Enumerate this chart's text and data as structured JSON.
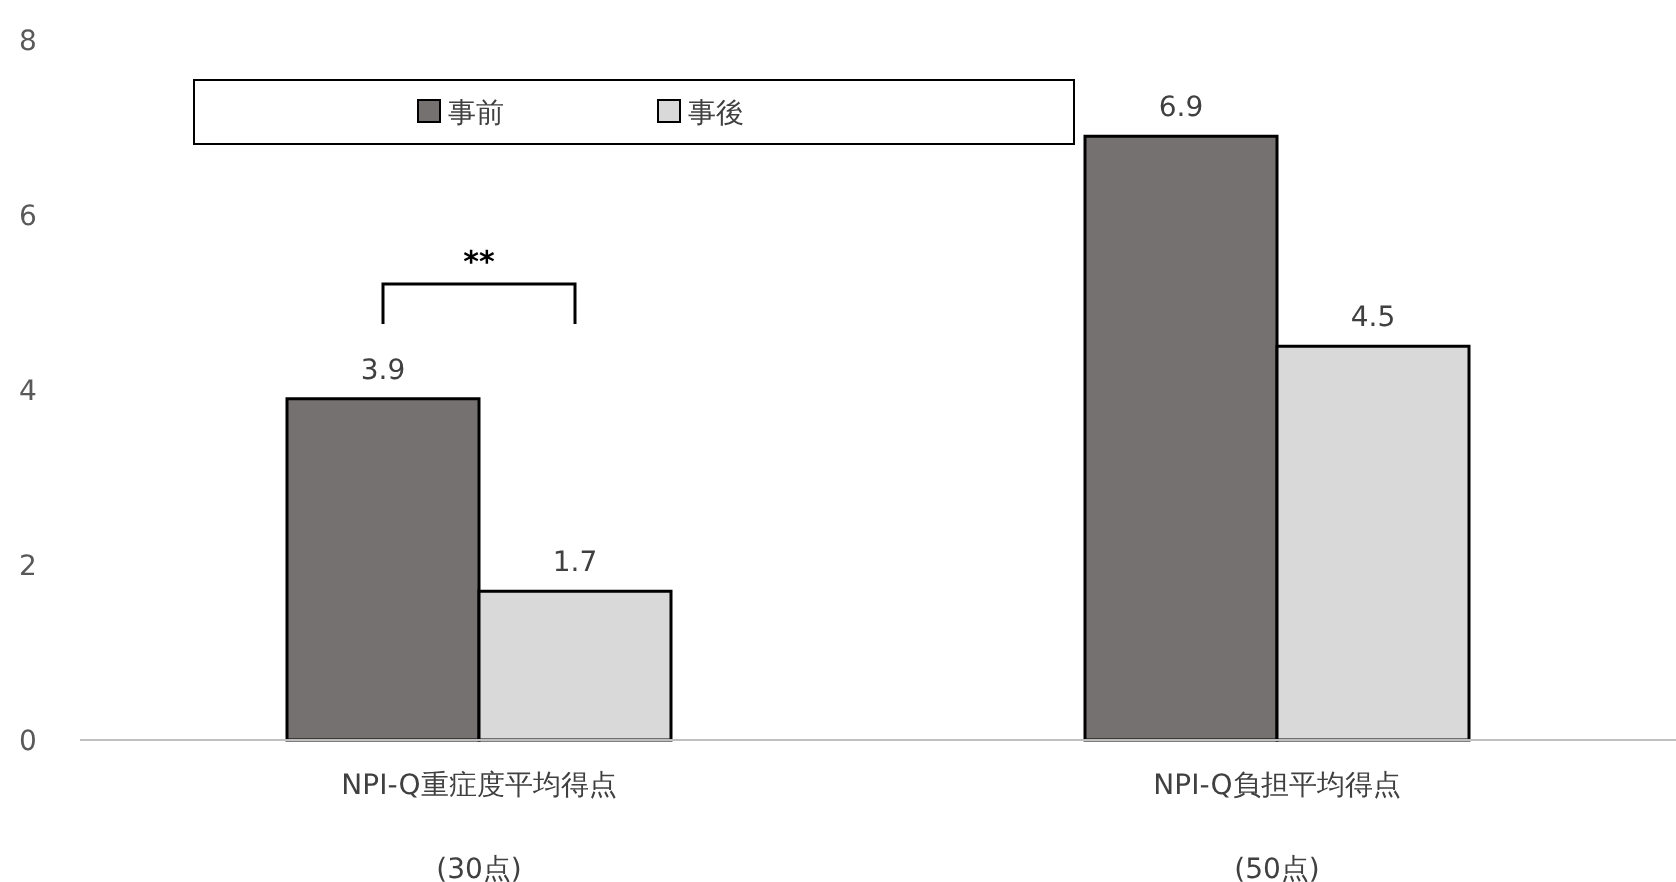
{
  "chart_data": {
    "type": "bar",
    "categories": [
      "NPI-Q重症度平均得点 (30点)",
      "NPI-Q負担平均得点 (50点)"
    ],
    "series": [
      {
        "name": "事前",
        "color": "#767171",
        "values": [
          3.9,
          6.9
        ]
      },
      {
        "name": "事後",
        "color": "#d9d9d9",
        "values": [
          1.7,
          4.5
        ]
      }
    ],
    "ylim": [
      0,
      8
    ],
    "yticks": [
      0,
      2,
      4,
      6,
      8
    ],
    "grid": false,
    "legend": "top",
    "data_labels": true,
    "annotations": [
      "**"
    ]
  }
}
